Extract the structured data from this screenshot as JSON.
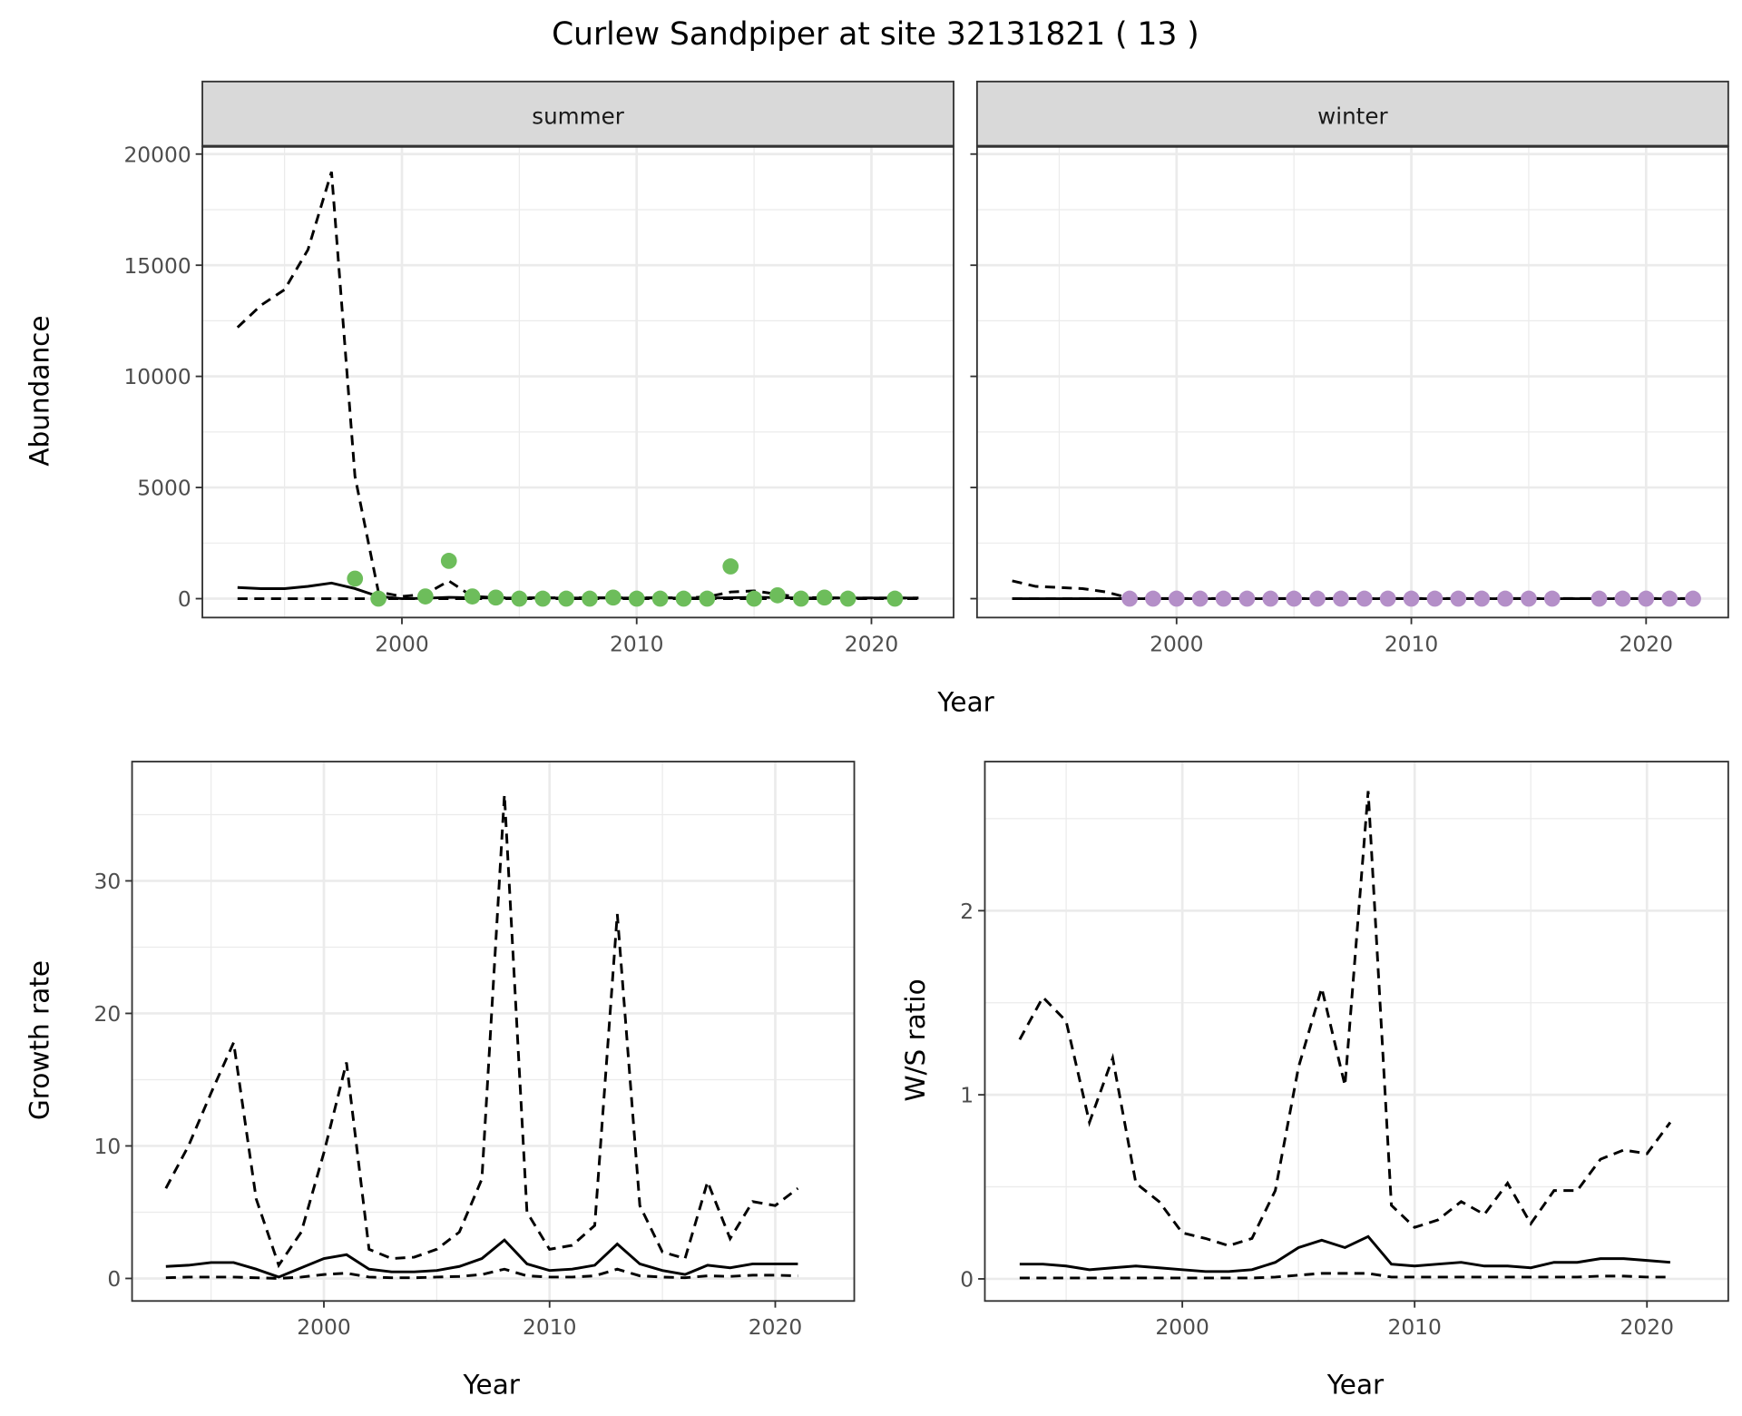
{
  "title": "Curlew Sandpiper at site 32131821 ( 13 )",
  "chart_data": [
    {
      "type": "line",
      "panel": "summer",
      "strip_label": "summer",
      "xlabel": "Year",
      "ylabel": "Abundance",
      "xlim": [
        1991.5,
        2023.5
      ],
      "ylim": [
        -850,
        20350
      ],
      "xticks": [
        2000,
        2010,
        2020
      ],
      "yticks": [
        0,
        5000,
        10000,
        15000,
        20000
      ],
      "grid": true,
      "lines": {
        "x": [
          1993,
          1994,
          1995,
          1996,
          1997,
          1998,
          1999,
          2000,
          2001,
          2002,
          2003,
          2004,
          2005,
          2006,
          2007,
          2008,
          2009,
          2010,
          2011,
          2012,
          2013,
          2014,
          2015,
          2016,
          2017,
          2018,
          2019,
          2020,
          2021,
          2022
        ],
        "upper": [
          12200,
          13200,
          13900,
          15700,
          19200,
          5500,
          300,
          100,
          200,
          800,
          100,
          50,
          40,
          40,
          40,
          40,
          40,
          40,
          40,
          40,
          80,
          300,
          350,
          200,
          60,
          40,
          30,
          30,
          30,
          30
        ],
        "estimate": [
          500,
          450,
          450,
          550,
          700,
          450,
          100,
          0,
          20,
          60,
          40,
          30,
          30,
          30,
          30,
          30,
          30,
          30,
          30,
          30,
          30,
          40,
          60,
          50,
          30,
          30,
          30,
          30,
          30,
          30
        ],
        "lower": [
          0,
          0,
          0,
          0,
          0,
          0,
          0,
          0,
          0,
          0,
          0,
          0,
          0,
          0,
          0,
          0,
          0,
          0,
          0,
          0,
          0,
          0,
          0,
          0,
          0,
          0,
          0,
          0,
          0,
          0
        ]
      },
      "points": {
        "color": "#6dbd5b",
        "x": [
          1998,
          1999,
          2001,
          2002,
          2003,
          2004,
          2005,
          2006,
          2007,
          2008,
          2009,
          2010,
          2011,
          2012,
          2013,
          2014,
          2015,
          2016,
          2017,
          2018,
          2019,
          2021
        ],
        "y": [
          900,
          0,
          100,
          1700,
          100,
          50,
          0,
          0,
          0,
          0,
          50,
          0,
          0,
          0,
          0,
          1450,
          0,
          150,
          0,
          50,
          0,
          0
        ]
      }
    },
    {
      "type": "line",
      "panel": "winter",
      "strip_label": "winter",
      "xlim": [
        1991.5,
        2023.5
      ],
      "ylim": [
        -850,
        20350
      ],
      "xticks": [
        2000,
        2010,
        2020
      ],
      "grid": true,
      "lines": {
        "x": [
          1993,
          1994,
          1995,
          1996,
          1997,
          1998,
          1999,
          2000,
          2001,
          2002,
          2003,
          2004,
          2005,
          2006,
          2007,
          2008,
          2009,
          2010,
          2011,
          2012,
          2013,
          2014,
          2015,
          2016,
          2017,
          2018,
          2019,
          2020,
          2021,
          2022
        ],
        "upper": [
          800,
          550,
          500,
          450,
          300,
          20,
          10,
          10,
          10,
          10,
          10,
          10,
          10,
          10,
          10,
          10,
          10,
          10,
          10,
          10,
          10,
          10,
          10,
          10,
          10,
          10,
          10,
          10,
          10,
          10
        ],
        "estimate": [
          0,
          0,
          0,
          0,
          0,
          0,
          0,
          0,
          0,
          0,
          0,
          0,
          0,
          0,
          0,
          0,
          0,
          0,
          0,
          0,
          0,
          0,
          0,
          0,
          0,
          0,
          0,
          0,
          0,
          0
        ],
        "lower": [
          0,
          0,
          0,
          0,
          0,
          0,
          0,
          0,
          0,
          0,
          0,
          0,
          0,
          0,
          0,
          0,
          0,
          0,
          0,
          0,
          0,
          0,
          0,
          0,
          0,
          0,
          0,
          0,
          0,
          0
        ]
      },
      "points": {
        "color": "#b48fc8",
        "x": [
          1998,
          1999,
          2000,
          2001,
          2002,
          2003,
          2004,
          2005,
          2006,
          2007,
          2008,
          2009,
          2010,
          2011,
          2012,
          2013,
          2014,
          2015,
          2016,
          2018,
          2019,
          2020,
          2021,
          2022
        ],
        "y": [
          0,
          0,
          0,
          0,
          0,
          0,
          0,
          0,
          0,
          0,
          0,
          0,
          0,
          0,
          0,
          0,
          0,
          0,
          0,
          0,
          0,
          0,
          0,
          0
        ]
      }
    },
    {
      "type": "line",
      "panel": "growth",
      "xlabel": "Year",
      "ylabel": "Growth rate",
      "xlim": [
        1991.5,
        2023.5
      ],
      "ylim": [
        -1.7,
        39
      ],
      "xticks": [
        2000,
        2010,
        2020
      ],
      "yticks": [
        0,
        10,
        20,
        30
      ],
      "grid": true,
      "lines": {
        "x": [
          1993,
          1994,
          1995,
          1996,
          1997,
          1998,
          1999,
          2000,
          2001,
          2002,
          2003,
          2004,
          2005,
          2006,
          2007,
          2008,
          2009,
          2010,
          2011,
          2012,
          2013,
          2014,
          2015,
          2016,
          2017,
          2018,
          2019,
          2020,
          2021
        ],
        "upper": [
          6.8,
          10,
          14,
          17.8,
          6,
          1,
          3.5,
          9.5,
          16.3,
          2.2,
          1.5,
          1.6,
          2.2,
          3.5,
          7.5,
          36.5,
          5,
          2.2,
          2.5,
          4,
          27.5,
          5.5,
          2,
          1.5,
          7.3,
          3,
          5.8,
          5.5,
          6.8
        ],
        "estimate": [
          0.9,
          1.0,
          1.2,
          1.2,
          0.7,
          0.1,
          0.8,
          1.5,
          1.8,
          0.7,
          0.5,
          0.5,
          0.6,
          0.9,
          1.5,
          2.9,
          1.1,
          0.6,
          0.7,
          1.0,
          2.6,
          1.1,
          0.6,
          0.3,
          1.0,
          0.8,
          1.1,
          1.1,
          1.1
        ],
        "lower": [
          0.05,
          0.1,
          0.1,
          0.1,
          0.05,
          0,
          0.1,
          0.3,
          0.4,
          0.1,
          0.05,
          0.05,
          0.1,
          0.15,
          0.3,
          0.7,
          0.2,
          0.1,
          0.1,
          0.2,
          0.7,
          0.2,
          0.1,
          0.05,
          0.2,
          0.15,
          0.25,
          0.25,
          0.2
        ]
      }
    },
    {
      "type": "line",
      "panel": "ws_ratio",
      "xlabel": "Year",
      "ylabel": "W/S ratio",
      "xlim": [
        1991.5,
        2023.5
      ],
      "ylim": [
        -0.12,
        2.81
      ],
      "xticks": [
        2000,
        2010,
        2020
      ],
      "yticks": [
        0,
        1,
        2
      ],
      "grid": true,
      "lines": {
        "x": [
          1993,
          1994,
          1995,
          1996,
          1997,
          1998,
          1999,
          2000,
          2001,
          2002,
          2003,
          2004,
          2005,
          2006,
          2007,
          2008,
          2009,
          2010,
          2011,
          2012,
          2013,
          2014,
          2015,
          2016,
          2017,
          2018,
          2019,
          2020,
          2021
        ],
        "upper": [
          1.3,
          1.53,
          1.4,
          0.85,
          1.2,
          0.52,
          0.42,
          0.25,
          0.22,
          0.18,
          0.22,
          0.48,
          1.15,
          1.58,
          1.05,
          2.65,
          0.4,
          0.28,
          0.32,
          0.42,
          0.35,
          0.52,
          0.3,
          0.48,
          0.48,
          0.65,
          0.7,
          0.68,
          0.85
        ],
        "estimate": [
          0.08,
          0.08,
          0.07,
          0.05,
          0.06,
          0.07,
          0.06,
          0.05,
          0.04,
          0.04,
          0.05,
          0.09,
          0.17,
          0.21,
          0.17,
          0.23,
          0.08,
          0.07,
          0.08,
          0.09,
          0.07,
          0.07,
          0.06,
          0.09,
          0.09,
          0.11,
          0.11,
          0.1,
          0.09
        ],
        "lower": [
          0.005,
          0.005,
          0.005,
          0.005,
          0.005,
          0.005,
          0.005,
          0.005,
          0.005,
          0.005,
          0.005,
          0.01,
          0.02,
          0.03,
          0.03,
          0.03,
          0.01,
          0.01,
          0.01,
          0.01,
          0.01,
          0.01,
          0.01,
          0.01,
          0.01,
          0.015,
          0.015,
          0.01,
          0.01
        ]
      }
    }
  ]
}
